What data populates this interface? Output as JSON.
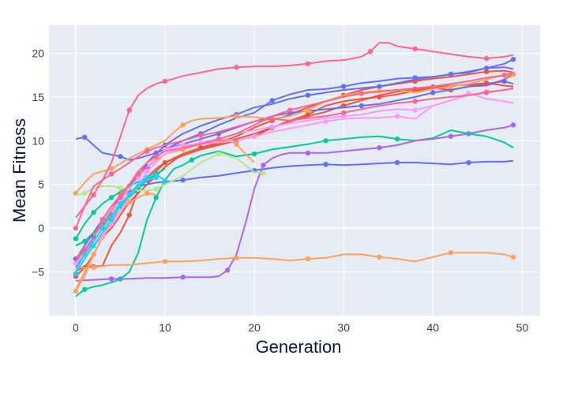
{
  "chart_data": {
    "type": "line",
    "xlabel": "Generation",
    "ylabel": "Mean Fitness",
    "xlim": [
      -3,
      52
    ],
    "ylim": [
      -10,
      23.2
    ],
    "x_ticks": [
      0,
      10,
      20,
      30,
      40,
      50
    ],
    "y_ticks": [
      -5,
      0,
      5,
      10,
      15,
      20
    ],
    "plot_background": "#e5ecf6",
    "grid_color": "#ffffff",
    "grid": true,
    "markers": "every few points",
    "series": [
      {
        "color": "#ef553b",
        "x": [
          0,
          1,
          2,
          3,
          4,
          5,
          6,
          7,
          8,
          9,
          10,
          12,
          14,
          16,
          18,
          20,
          22,
          24,
          26,
          28,
          30,
          32,
          34,
          36,
          38,
          40,
          42,
          44,
          46,
          48,
          49
        ],
        "values": [
          -5.5,
          -4.5,
          -3,
          -1,
          0.5,
          2,
          3.5,
          4.5,
          5.5,
          6.5,
          7.5,
          8.5,
          9.2,
          9.6,
          10.2,
          10.8,
          11.5,
          12.2,
          12.8,
          13.3,
          14,
          14.6,
          15.2,
          15.6,
          15.9,
          16.1,
          16.3,
          16.4,
          16.6,
          16.3,
          16.2
        ]
      },
      {
        "color": "#ef553b",
        "x": [
          0,
          2,
          4,
          6,
          8,
          10,
          12,
          14,
          16,
          18,
          20,
          22,
          24,
          26,
          28,
          30,
          32,
          34,
          36,
          38,
          40,
          42,
          44,
          46,
          48,
          49
        ],
        "values": [
          -3.5,
          -2,
          0,
          3,
          5,
          7,
          8.5,
          9.2,
          9.8,
          10.5,
          11.5,
          12.3,
          13,
          13.8,
          14.5,
          15.2,
          15.8,
          16.2,
          16.5,
          16.8,
          17.1,
          17.3,
          17.6,
          17.9,
          18,
          17.8
        ]
      },
      {
        "color": "#ef553b",
        "x": [
          0,
          1,
          2,
          3,
          4,
          5,
          6,
          7,
          8,
          9,
          10,
          12,
          14,
          16,
          18,
          20,
          22,
          24,
          26,
          28,
          30,
          32,
          34,
          36,
          38,
          40,
          42,
          44,
          46,
          48,
          49
        ],
        "values": [
          -5,
          -4.3,
          -4.4,
          -4.3,
          -2,
          -0.5,
          1.5,
          4.5,
          5.8,
          6.8,
          7.5,
          8.3,
          9,
          9.5,
          10,
          10.5,
          11.5,
          12.3,
          13,
          14,
          14.5,
          14.8,
          15,
          15.3,
          15.7,
          16,
          15.8,
          16.2,
          16.3,
          17,
          17.6
        ]
      },
      {
        "color": "#636efa",
        "x": [
          0,
          1,
          2,
          3,
          4,
          5,
          6,
          7,
          8,
          9,
          10,
          12,
          14,
          16,
          18,
          20,
          22,
          24,
          26,
          28,
          30,
          32,
          34,
          36,
          38,
          40,
          42,
          44,
          46,
          48,
          49
        ],
        "values": [
          10.2,
          10.4,
          9.5,
          8.6,
          8.4,
          8.2,
          7.8,
          8,
          8.3,
          8.6,
          9,
          9.6,
          10.2,
          10.8,
          11.5,
          12.2,
          12.8,
          13.2,
          13.4,
          13.6,
          13.8,
          14,
          14.2,
          14.6,
          15,
          15.5,
          15.8,
          16.2,
          16.5,
          16.8,
          16.5
        ]
      },
      {
        "color": "#636efa",
        "x": [
          0,
          1,
          2,
          3,
          4,
          5,
          6,
          7,
          8,
          9,
          10,
          12,
          14,
          16,
          18,
          20,
          22,
          24,
          26,
          28,
          30,
          32,
          34,
          36,
          38,
          40,
          42,
          44,
          46,
          48,
          49
        ],
        "values": [
          -3.5,
          -2.5,
          -1.5,
          0,
          1.5,
          3,
          4.5,
          6,
          7,
          8,
          9,
          10,
          10.8,
          11.8,
          12.6,
          13.2,
          14.6,
          15.3,
          15.8,
          15.9,
          16.2,
          16.6,
          16.8,
          17.1,
          17.2,
          17.3,
          17.6,
          17.8,
          18.3,
          18.4,
          18.2
        ]
      },
      {
        "color": "#636efa",
        "x": [
          0,
          1,
          2,
          3,
          4,
          5,
          6,
          7,
          8,
          9,
          10,
          12,
          14,
          16,
          18,
          20,
          22,
          24,
          26,
          28,
          30,
          32,
          34,
          36,
          38,
          40,
          42,
          44,
          46,
          48,
          49
        ],
        "values": [
          -3.6,
          -2,
          -0.5,
          1,
          2.5,
          3.6,
          4.2,
          4.8,
          5,
          5.2,
          5.3,
          5.5,
          5.8,
          6,
          6.3,
          6.6,
          6.9,
          7.1,
          7.2,
          7.3,
          7.2,
          7.3,
          7.4,
          7.5,
          7.5,
          7.4,
          7.3,
          7.5,
          7.6,
          7.6,
          7.7
        ]
      },
      {
        "color": "#636efa",
        "x": [
          0,
          1,
          2,
          3,
          4,
          5,
          6,
          7,
          8,
          9,
          10,
          12,
          14,
          16,
          18,
          20,
          22,
          24,
          26,
          28,
          30,
          32,
          34,
          36,
          38,
          40,
          42,
          44,
          46,
          48,
          49
        ],
        "values": [
          -4.5,
          -3,
          -1,
          1,
          2.5,
          3.5,
          4.8,
          6,
          7.5,
          8.5,
          9.5,
          10.8,
          11.7,
          12.4,
          13,
          13.8,
          14.2,
          14.8,
          15.2,
          15.5,
          15.8,
          16,
          16.2,
          16.6,
          17,
          17.3,
          17.6,
          17.9,
          18.3,
          18.8,
          19.3
        ]
      },
      {
        "color": "#00cc96",
        "x": [
          0,
          1,
          2,
          3,
          4,
          5,
          6,
          7,
          8,
          9,
          10,
          11,
          12,
          13,
          14,
          16,
          18,
          20,
          22,
          24,
          26,
          28,
          30,
          32,
          34,
          36,
          38,
          40,
          42,
          44,
          46,
          48,
          49
        ],
        "values": [
          -7.8,
          -7,
          -6.7,
          -6.5,
          -6.2,
          -5.8,
          -5,
          -2.8,
          1,
          3.5,
          5.5,
          6.8,
          7.2,
          7.8,
          8.3,
          8.8,
          8.2,
          8.5,
          9,
          9.3,
          9.6,
          10,
          10.2,
          10.4,
          10.5,
          10.2,
          10,
          10.3,
          11.2,
          10.8,
          10.5,
          9.8,
          9.2
        ]
      },
      {
        "color": "#00cc96",
        "x": [
          0,
          1,
          2,
          3,
          4,
          5,
          6,
          7,
          8,
          9
        ],
        "values": [
          -1.2,
          0.5,
          1.8,
          2.8,
          3.5,
          4.2,
          4.8,
          5.3,
          5.8,
          6
        ]
      },
      {
        "color": "#00cc96",
        "x": [
          0,
          1,
          2,
          3,
          4,
          5,
          6,
          7,
          8,
          9,
          10
        ],
        "values": [
          -2,
          -1.5,
          -0.5,
          0.5,
          1.5,
          2.5,
          3.5,
          4.5,
          5.5,
          6.2,
          6.8
        ]
      },
      {
        "color": "#ab63fa",
        "x": [
          0,
          2,
          4,
          6,
          8,
          10,
          12,
          14,
          15,
          16,
          17,
          18,
          19,
          20,
          21,
          22,
          23,
          24,
          26,
          28,
          30,
          32,
          34,
          36,
          38,
          40,
          42,
          44,
          46,
          48,
          49
        ],
        "values": [
          -6,
          -5.9,
          -5.8,
          -5.8,
          -5.7,
          -5.7,
          -5.6,
          -5.6,
          -5.6,
          -5.5,
          -4.8,
          -3,
          0.5,
          4.5,
          7.2,
          8,
          8.4,
          8.6,
          8.6,
          8.6,
          8.8,
          9,
          9.2,
          9.5,
          10,
          10.2,
          10.5,
          10.8,
          11.2,
          11.5,
          11.8
        ]
      },
      {
        "color": "#ffa15a",
        "x": [
          0,
          2,
          4,
          6,
          8,
          10,
          12,
          14,
          16,
          18,
          20,
          22,
          24,
          26,
          28,
          30,
          32,
          34,
          36,
          38,
          40,
          42,
          44,
          46,
          48,
          49
        ],
        "values": [
          -4.5,
          -4.5,
          -4.2,
          -4.2,
          -4,
          -3.8,
          -3.8,
          -3.7,
          -3.5,
          -3.4,
          -3.4,
          -3.5,
          -3.7,
          -3.5,
          -3.4,
          -3,
          -3,
          -3.3,
          -3.5,
          -3.8,
          -3.3,
          -2.8,
          -2.8,
          -2.8,
          -3,
          -3.3
        ]
      },
      {
        "color": "#ffa15a",
        "x": [
          0,
          1,
          2,
          3,
          4,
          5,
          6,
          7,
          8,
          9,
          10,
          11,
          12,
          13,
          14,
          16,
          18,
          20,
          22,
          24,
          26,
          28,
          30,
          32,
          34,
          36,
          38,
          40,
          42,
          44,
          46,
          48,
          49
        ],
        "values": [
          4,
          5.2,
          6.2,
          6.5,
          6.8,
          7.4,
          8,
          8.5,
          9,
          9.5,
          10,
          11,
          11.8,
          12.3,
          12.5,
          12.6,
          12.8,
          12.7,
          12.5,
          12.8,
          13.5,
          14.5,
          15.2,
          15.5,
          15.7,
          15.8,
          15.5,
          15.9,
          16.2,
          16.5,
          17,
          17.5,
          17.6
        ]
      },
      {
        "color": "#ffa15a",
        "x": [
          0,
          1,
          2,
          3,
          4,
          5,
          6,
          7,
          8,
          9,
          10,
          12,
          14,
          16,
          17,
          18,
          19,
          20
        ],
        "values": [
          -7,
          -5,
          -3,
          -1,
          1,
          3,
          5,
          6.2,
          7,
          7.8,
          8.5,
          9,
          9.6,
          10,
          10.2,
          9.6,
          8.5,
          7.5
        ]
      },
      {
        "color": "#ffa15a",
        "x": [
          0,
          1,
          2,
          3,
          4,
          5,
          6,
          7,
          8,
          9
        ],
        "values": [
          -7.2,
          -5.5,
          -3,
          -1,
          1,
          2,
          3,
          3.5,
          4,
          3.8
        ]
      },
      {
        "color": "#b6e880",
        "x": [
          0,
          1,
          2,
          3,
          4,
          5,
          6,
          7,
          8,
          9,
          10,
          12,
          14,
          16,
          18,
          19,
          20,
          21
        ],
        "values": [
          3.8,
          4,
          4.6,
          4.8,
          4.8,
          4.6,
          4.5,
          4.3,
          4.3,
          4.5,
          5,
          6,
          7.5,
          8.5,
          8,
          7.2,
          6.4,
          6.3
        ]
      },
      {
        "color": "#ff97ff",
        "x": [
          0,
          1,
          2,
          3,
          4,
          5,
          6,
          7,
          8,
          9,
          10,
          12,
          14,
          16,
          18,
          20,
          22,
          24,
          26,
          28,
          30,
          32,
          34,
          36,
          38,
          40,
          42,
          44,
          46,
          48,
          49
        ],
        "values": [
          -4,
          -3,
          -2,
          -1,
          0.5,
          2,
          3.5,
          5,
          6.5,
          7.5,
          8.5,
          9.2,
          9.8,
          10.2,
          10.8,
          11.2,
          11.6,
          12,
          12.3,
          12.6,
          12.8,
          13,
          13.4,
          13.6,
          13.5,
          14,
          14.6,
          15.2,
          15.6,
          15.8,
          15.9
        ]
      },
      {
        "color": "#ff97ff",
        "x": [
          0,
          1,
          2,
          3,
          4,
          5,
          6,
          7,
          8,
          9,
          10,
          12,
          14,
          16,
          18,
          20,
          22,
          24,
          26,
          28,
          30,
          32,
          34,
          36,
          38,
          40,
          42,
          44,
          46,
          48,
          49
        ],
        "values": [
          -3.8,
          -2.8,
          -1.5,
          0,
          1.5,
          3,
          4.5,
          5.8,
          7,
          8,
          9,
          9.5,
          9.6,
          9.8,
          10,
          10.5,
          11,
          11.4,
          11.8,
          12.2,
          12.5,
          12.6,
          12.6,
          12.8,
          12.5,
          14,
          14.6,
          15.4,
          14.8,
          14.5,
          14.3
        ]
      },
      {
        "color": "#fe6692",
        "x": [
          0,
          1,
          2,
          3,
          4,
          5,
          6,
          7,
          8,
          9,
          10,
          12,
          14,
          16,
          18,
          20,
          22,
          24,
          26,
          28,
          30,
          32,
          33,
          34,
          35,
          36,
          38,
          40,
          42,
          44,
          46,
          48,
          49
        ],
        "values": [
          1.2,
          2.5,
          3.8,
          5.5,
          7.5,
          10.5,
          13.5,
          15.2,
          16,
          16.5,
          16.8,
          17.4,
          17.8,
          18.2,
          18.4,
          18.5,
          18.5,
          18.6,
          18.8,
          19.1,
          19.2,
          19.6,
          20.2,
          21.2,
          21.2,
          20.8,
          20.5,
          20.2,
          19.9,
          19.6,
          19.4,
          19.6,
          19.8
        ]
      },
      {
        "color": "#fe6692",
        "x": [
          0,
          1,
          2,
          3,
          4,
          5,
          6,
          7,
          8,
          9,
          10,
          12,
          14,
          16,
          18,
          20,
          22,
          24,
          26,
          28,
          30,
          32,
          34,
          36,
          38,
          40,
          42,
          44,
          46,
          48,
          49
        ],
        "values": [
          -3.4,
          -2.5,
          -1,
          0.5,
          2,
          3.5,
          5,
          6.5,
          7.5,
          8.2,
          8.8,
          9.2,
          9.6,
          10.2,
          10.8,
          11.8,
          12.8,
          13.5,
          14,
          14.5,
          15,
          15.4,
          15.6,
          15.8,
          16,
          16.2,
          16.5,
          16.8,
          17.2,
          17.5,
          17.7
        ]
      },
      {
        "color": "#fe6692",
        "x": [
          0,
          1,
          2,
          3,
          4,
          5,
          6,
          7,
          8,
          9,
          10,
          12,
          14,
          16,
          18,
          20,
          22,
          24,
          26,
          28,
          30,
          32,
          34,
          36,
          38,
          40,
          42,
          44,
          46,
          48,
          49
        ],
        "values": [
          0,
          2.5,
          4.8,
          5.5,
          6.2,
          6.8,
          7.5,
          8.2,
          8.8,
          9.2,
          9.5,
          10,
          10.6,
          11,
          11.6,
          12.2,
          12.5,
          12.3,
          12.6,
          12.8,
          13.2,
          13.6,
          14,
          14.3,
          14.5,
          14.8,
          15,
          15.2,
          15.5,
          15.8,
          16
        ]
      },
      {
        "color": "#19d3f3",
        "x": [
          0,
          1,
          2,
          3,
          4,
          5,
          6,
          7,
          8,
          9
        ],
        "values": [
          -4.8,
          -3,
          -1.5,
          0,
          1.5,
          2.8,
          3.8,
          4.8,
          5.5,
          5.8
        ]
      },
      {
        "color": "#19d3f3",
        "x": [
          0,
          1,
          2,
          3,
          4,
          5,
          6,
          7,
          8,
          9,
          10
        ],
        "values": [
          -5.2,
          -3.5,
          -2,
          -0.5,
          1,
          2.5,
          3.8,
          5,
          5.8,
          6.2,
          5.4
        ]
      },
      {
        "color": "#ff6692",
        "x": [
          0,
          1,
          2,
          3,
          4,
          5,
          6,
          7,
          8
        ],
        "values": [
          -3.8,
          -2.5,
          -1,
          1,
          2.5,
          3.8,
          5,
          6.2,
          7
        ]
      }
    ]
  }
}
